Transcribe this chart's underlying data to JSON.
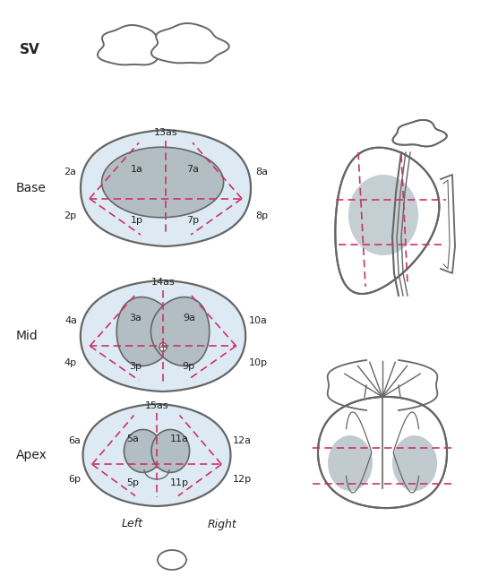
{
  "bg_color": "#ffffff",
  "outline_color": "#666666",
  "zone_fill_light": "#ddeaf4",
  "zone_fill_gray": "#b2bec3",
  "dashed_color": "#cc3366",
  "label_color": "#222222",
  "sv_label": "SV",
  "base_label": "Base",
  "mid_label": "Mid",
  "apex_label": "Apex",
  "left_label": "Left",
  "right_label": "Right"
}
